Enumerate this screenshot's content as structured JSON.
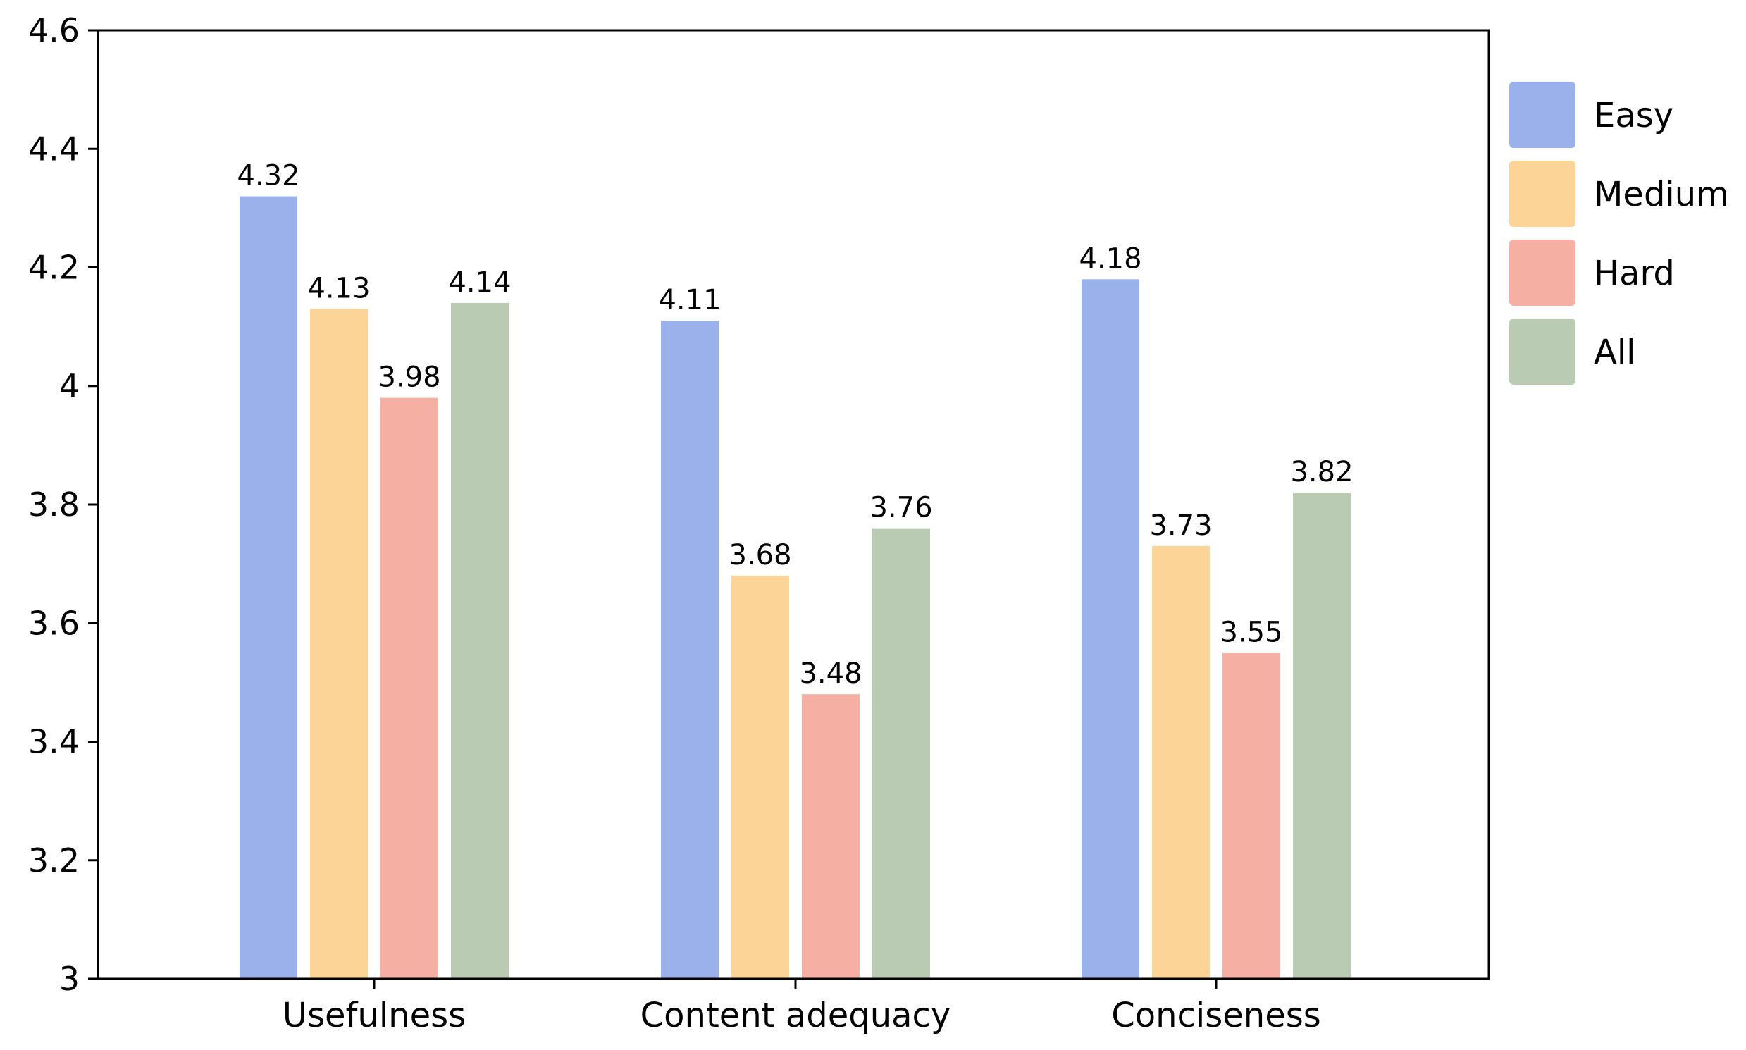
{
  "chart_data": {
    "type": "bar",
    "title": "",
    "xlabel": "",
    "ylabel": "",
    "ylim": [
      3,
      4.6
    ],
    "yticks": [
      3,
      3.2,
      3.4,
      3.6,
      3.8,
      4,
      4.2,
      4.4,
      4.6
    ],
    "ytick_labels": [
      "3",
      "3.2",
      "3.4",
      "3.6",
      "3.8",
      "4",
      "4.2",
      "4.4",
      "4.6"
    ],
    "grid": false,
    "legend_position": "right",
    "categories": [
      "Usefulness",
      "Content adequacy",
      "Conciseness"
    ],
    "series": [
      {
        "name": "Easy",
        "color": "#9BB1EB",
        "values": [
          4.32,
          4.11,
          4.18
        ],
        "labels": [
          "4.32",
          "4.11",
          "4.18"
        ]
      },
      {
        "name": "Medium",
        "color": "#FDD498",
        "values": [
          4.13,
          3.68,
          3.73
        ],
        "labels": [
          "4.13",
          "3.68",
          "3.73"
        ]
      },
      {
        "name": "Hard",
        "color": "#F5AFA3",
        "values": [
          3.98,
          3.48,
          3.55
        ],
        "labels": [
          "3.98",
          "3.48",
          "3.55"
        ]
      },
      {
        "name": "All",
        "color": "#B9CBB3",
        "values": [
          4.14,
          3.76,
          3.82
        ],
        "labels": [
          "4.14",
          "3.76",
          "3.82"
        ]
      }
    ]
  }
}
